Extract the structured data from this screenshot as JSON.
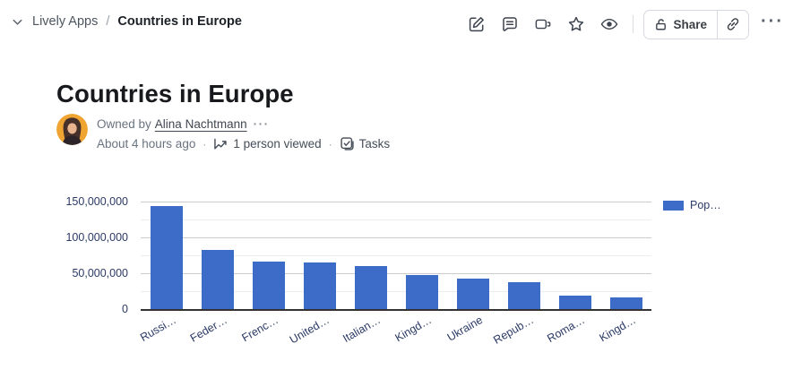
{
  "breadcrumb": {
    "parent": "Lively Apps",
    "separator": "/",
    "current": "Countries in Europe"
  },
  "topbar": {
    "icons": [
      "edit-icon",
      "comment-icon",
      "video-icon",
      "star-icon",
      "eye-icon"
    ],
    "share_label": "Share",
    "more_label": "···"
  },
  "page": {
    "title": "Countries in Europe"
  },
  "meta": {
    "owned_by_prefix": "Owned by",
    "owner_name": "Alina Nachtmann",
    "owner_more": "···",
    "updated": "About 4 hours ago",
    "separator": "·",
    "viewed": "1 person viewed",
    "tasks_label": "Tasks"
  },
  "chart_data": {
    "type": "bar",
    "title": "",
    "categories": [
      "Russi…",
      "Feder…",
      "Frenc…",
      "United…",
      "Italian…",
      "Kingd…",
      "Ukraine",
      "Repub…",
      "Roma…",
      "Kingd…"
    ],
    "values": [
      143500000,
      82300000,
      66000000,
      65500000,
      59400000,
      47000000,
      42600000,
      37000000,
      18400000,
      16000000
    ],
    "series_name": "Pop…",
    "xlabel": "",
    "ylabel": "",
    "ylim": [
      0,
      150000000
    ],
    "y_ticks": [
      {
        "value": 0,
        "label": "0"
      },
      {
        "value": 50000000,
        "label": "50,000,000"
      },
      {
        "value": 100000000,
        "label": "100,000,000"
      },
      {
        "value": 150000000,
        "label": "150,000,000"
      }
    ],
    "minor_grid_step": 25000000,
    "major_grid_step": 50000000,
    "grid": true,
    "legend_position": "right",
    "bar_color": "#3d6cc8",
    "axis_text_color": "#2b3a66",
    "x_label_rotation": -30
  }
}
